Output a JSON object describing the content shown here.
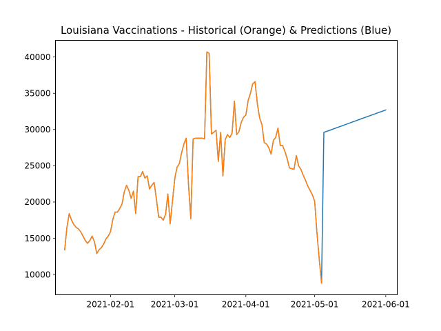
{
  "chart_data": {
    "type": "line",
    "title": "Louisiana Vaccinations - Historical (Orange) & Predictions (Blue)",
    "xlabel": "",
    "ylabel": "",
    "xlim": [
      "2021-01-08",
      "2021-06-06"
    ],
    "ylim": [
      7200,
      42300
    ],
    "grid": false,
    "x_ticks": [
      "2021-02-01",
      "2021-03-01",
      "2021-04-01",
      "2021-05-01",
      "2021-06-01"
    ],
    "y_ticks": [
      10000,
      15000,
      20000,
      25000,
      30000,
      35000,
      40000
    ],
    "colors": {
      "historical": "#ff7f0e",
      "predictions": "#1f77b4"
    },
    "series": [
      {
        "color": "#1f77b4",
        "points": [
          [
            "2021-01-12",
            13400
          ],
          [
            "2021-01-13",
            16500
          ],
          [
            "2021-01-14",
            18400
          ],
          [
            "2021-01-15",
            17500
          ],
          [
            "2021-01-16",
            16900
          ],
          [
            "2021-01-17",
            16500
          ],
          [
            "2021-01-18",
            16300
          ],
          [
            "2021-01-19",
            15900
          ],
          [
            "2021-01-20",
            15300
          ],
          [
            "2021-01-21",
            14700
          ],
          [
            "2021-01-22",
            14300
          ],
          [
            "2021-01-23",
            14700
          ],
          [
            "2021-01-24",
            15300
          ],
          [
            "2021-01-25",
            14500
          ],
          [
            "2021-01-26",
            12900
          ],
          [
            "2021-01-27",
            13400
          ],
          [
            "2021-01-28",
            13700
          ],
          [
            "2021-01-29",
            14200
          ],
          [
            "2021-01-30",
            14900
          ],
          [
            "2021-01-31",
            15300
          ],
          [
            "2021-02-01",
            15900
          ],
          [
            "2021-02-02",
            17600
          ],
          [
            "2021-02-03",
            18600
          ],
          [
            "2021-02-04",
            18600
          ],
          [
            "2021-02-05",
            19100
          ],
          [
            "2021-02-06",
            19700
          ],
          [
            "2021-02-07",
            21400
          ],
          [
            "2021-02-08",
            22300
          ],
          [
            "2021-02-09",
            21600
          ],
          [
            "2021-02-10",
            20500
          ],
          [
            "2021-02-11",
            21500
          ],
          [
            "2021-02-12",
            18400
          ],
          [
            "2021-02-13",
            23500
          ],
          [
            "2021-02-14",
            23500
          ],
          [
            "2021-02-15",
            24200
          ],
          [
            "2021-02-16",
            23300
          ],
          [
            "2021-02-17",
            23600
          ],
          [
            "2021-02-18",
            21800
          ],
          [
            "2021-02-19",
            22300
          ],
          [
            "2021-02-20",
            22700
          ],
          [
            "2021-02-21",
            20400
          ],
          [
            "2021-02-22",
            17900
          ],
          [
            "2021-02-23",
            17900
          ],
          [
            "2021-02-24",
            17500
          ],
          [
            "2021-02-25",
            18300
          ],
          [
            "2021-02-26",
            21100
          ],
          [
            "2021-02-27",
            17000
          ],
          [
            "2021-02-28",
            20100
          ],
          [
            "2021-03-01",
            23200
          ],
          [
            "2021-03-02",
            24800
          ],
          [
            "2021-03-03",
            25300
          ],
          [
            "2021-03-04",
            26800
          ],
          [
            "2021-03-05",
            28000
          ],
          [
            "2021-03-06",
            28800
          ],
          [
            "2021-03-07",
            22400
          ],
          [
            "2021-03-08",
            17700
          ],
          [
            "2021-03-09",
            28700
          ],
          [
            "2021-03-10",
            28800
          ],
          [
            "2021-03-11",
            28800
          ],
          [
            "2021-03-12",
            28800
          ],
          [
            "2021-03-13",
            28800
          ],
          [
            "2021-03-14",
            28700
          ],
          [
            "2021-03-15",
            40700
          ],
          [
            "2021-03-16",
            40500
          ],
          [
            "2021-03-17",
            29400
          ],
          [
            "2021-03-18",
            29600
          ],
          [
            "2021-03-19",
            29900
          ],
          [
            "2021-03-20",
            25600
          ],
          [
            "2021-03-21",
            29600
          ],
          [
            "2021-03-22",
            23600
          ],
          [
            "2021-03-23",
            28600
          ],
          [
            "2021-03-24",
            29300
          ],
          [
            "2021-03-25",
            28900
          ],
          [
            "2021-03-26",
            29500
          ],
          [
            "2021-03-27",
            33900
          ],
          [
            "2021-03-28",
            29300
          ],
          [
            "2021-03-29",
            29700
          ],
          [
            "2021-03-30",
            31000
          ],
          [
            "2021-03-31",
            31700
          ],
          [
            "2021-04-01",
            32000
          ],
          [
            "2021-04-02",
            34000
          ],
          [
            "2021-04-03",
            35000
          ],
          [
            "2021-04-04",
            36300
          ],
          [
            "2021-04-05",
            36600
          ],
          [
            "2021-04-06",
            33600
          ],
          [
            "2021-04-07",
            31600
          ],
          [
            "2021-04-08",
            30700
          ],
          [
            "2021-04-09",
            28200
          ],
          [
            "2021-04-10",
            28000
          ],
          [
            "2021-04-11",
            27500
          ],
          [
            "2021-04-12",
            26600
          ],
          [
            "2021-04-13",
            28500
          ],
          [
            "2021-04-14",
            28900
          ],
          [
            "2021-04-15",
            30200
          ],
          [
            "2021-04-16",
            27800
          ],
          [
            "2021-04-17",
            27800
          ],
          [
            "2021-04-18",
            27000
          ],
          [
            "2021-04-19",
            26000
          ],
          [
            "2021-04-20",
            24700
          ],
          [
            "2021-04-21",
            24600
          ],
          [
            "2021-04-22",
            24500
          ],
          [
            "2021-04-23",
            26400
          ],
          [
            "2021-04-24",
            25000
          ],
          [
            "2021-04-25",
            24500
          ],
          [
            "2021-04-26",
            23700
          ],
          [
            "2021-04-27",
            23000
          ],
          [
            "2021-04-28",
            22200
          ],
          [
            "2021-04-29",
            21600
          ],
          [
            "2021-04-30",
            21000
          ],
          [
            "2021-05-01",
            20100
          ],
          [
            "2021-05-02",
            15700
          ],
          [
            "2021-05-03",
            12100
          ],
          [
            "2021-05-04",
            8800
          ],
          [
            "2021-05-05",
            29600
          ],
          [
            "2021-06-01",
            32700
          ]
        ]
      },
      {
        "color": "#ff7f0e",
        "points": [
          [
            "2021-01-12",
            13400
          ],
          [
            "2021-01-13",
            16500
          ],
          [
            "2021-01-14",
            18400
          ],
          [
            "2021-01-15",
            17500
          ],
          [
            "2021-01-16",
            16900
          ],
          [
            "2021-01-17",
            16500
          ],
          [
            "2021-01-18",
            16300
          ],
          [
            "2021-01-19",
            15900
          ],
          [
            "2021-01-20",
            15300
          ],
          [
            "2021-01-21",
            14700
          ],
          [
            "2021-01-22",
            14300
          ],
          [
            "2021-01-23",
            14700
          ],
          [
            "2021-01-24",
            15300
          ],
          [
            "2021-01-25",
            14500
          ],
          [
            "2021-01-26",
            12900
          ],
          [
            "2021-01-27",
            13400
          ],
          [
            "2021-01-28",
            13700
          ],
          [
            "2021-01-29",
            14200
          ],
          [
            "2021-01-30",
            14900
          ],
          [
            "2021-01-31",
            15300
          ],
          [
            "2021-02-01",
            15900
          ],
          [
            "2021-02-02",
            17600
          ],
          [
            "2021-02-03",
            18600
          ],
          [
            "2021-02-04",
            18600
          ],
          [
            "2021-02-05",
            19100
          ],
          [
            "2021-02-06",
            19700
          ],
          [
            "2021-02-07",
            21400
          ],
          [
            "2021-02-08",
            22300
          ],
          [
            "2021-02-09",
            21600
          ],
          [
            "2021-02-10",
            20500
          ],
          [
            "2021-02-11",
            21500
          ],
          [
            "2021-02-12",
            18400
          ],
          [
            "2021-02-13",
            23500
          ],
          [
            "2021-02-14",
            23500
          ],
          [
            "2021-02-15",
            24200
          ],
          [
            "2021-02-16",
            23300
          ],
          [
            "2021-02-17",
            23600
          ],
          [
            "2021-02-18",
            21800
          ],
          [
            "2021-02-19",
            22300
          ],
          [
            "2021-02-20",
            22700
          ],
          [
            "2021-02-21",
            20400
          ],
          [
            "2021-02-22",
            17900
          ],
          [
            "2021-02-23",
            17900
          ],
          [
            "2021-02-24",
            17500
          ],
          [
            "2021-02-25",
            18300
          ],
          [
            "2021-02-26",
            21100
          ],
          [
            "2021-02-27",
            17000
          ],
          [
            "2021-02-28",
            20100
          ],
          [
            "2021-03-01",
            23200
          ],
          [
            "2021-03-02",
            24800
          ],
          [
            "2021-03-03",
            25300
          ],
          [
            "2021-03-04",
            26800
          ],
          [
            "2021-03-05",
            28000
          ],
          [
            "2021-03-06",
            28800
          ],
          [
            "2021-03-07",
            22400
          ],
          [
            "2021-03-08",
            17700
          ],
          [
            "2021-03-09",
            28700
          ],
          [
            "2021-03-10",
            28800
          ],
          [
            "2021-03-11",
            28800
          ],
          [
            "2021-03-12",
            28800
          ],
          [
            "2021-03-13",
            28800
          ],
          [
            "2021-03-14",
            28700
          ],
          [
            "2021-03-15",
            40700
          ],
          [
            "2021-03-16",
            40500
          ],
          [
            "2021-03-17",
            29400
          ],
          [
            "2021-03-18",
            29600
          ],
          [
            "2021-03-19",
            29900
          ],
          [
            "2021-03-20",
            25600
          ],
          [
            "2021-03-21",
            29600
          ],
          [
            "2021-03-22",
            23600
          ],
          [
            "2021-03-23",
            28600
          ],
          [
            "2021-03-24",
            29300
          ],
          [
            "2021-03-25",
            28900
          ],
          [
            "2021-03-26",
            29500
          ],
          [
            "2021-03-27",
            33900
          ],
          [
            "2021-03-28",
            29300
          ],
          [
            "2021-03-29",
            29700
          ],
          [
            "2021-03-30",
            31000
          ],
          [
            "2021-03-31",
            31700
          ],
          [
            "2021-04-01",
            32000
          ],
          [
            "2021-04-02",
            34000
          ],
          [
            "2021-04-03",
            35000
          ],
          [
            "2021-04-04",
            36300
          ],
          [
            "2021-04-05",
            36600
          ],
          [
            "2021-04-06",
            33600
          ],
          [
            "2021-04-07",
            31600
          ],
          [
            "2021-04-08",
            30700
          ],
          [
            "2021-04-09",
            28200
          ],
          [
            "2021-04-10",
            28000
          ],
          [
            "2021-04-11",
            27500
          ],
          [
            "2021-04-12",
            26600
          ],
          [
            "2021-04-13",
            28500
          ],
          [
            "2021-04-14",
            28900
          ],
          [
            "2021-04-15",
            30200
          ],
          [
            "2021-04-16",
            27800
          ],
          [
            "2021-04-17",
            27800
          ],
          [
            "2021-04-18",
            27000
          ],
          [
            "2021-04-19",
            26000
          ],
          [
            "2021-04-20",
            24700
          ],
          [
            "2021-04-21",
            24600
          ],
          [
            "2021-04-22",
            24500
          ],
          [
            "2021-04-23",
            26400
          ],
          [
            "2021-04-24",
            25000
          ],
          [
            "2021-04-25",
            24500
          ],
          [
            "2021-04-26",
            23700
          ],
          [
            "2021-04-27",
            23000
          ],
          [
            "2021-04-28",
            22200
          ],
          [
            "2021-04-29",
            21600
          ],
          [
            "2021-04-30",
            21000
          ],
          [
            "2021-05-01",
            20100
          ],
          [
            "2021-05-02",
            15700
          ],
          [
            "2021-05-03",
            12100
          ],
          [
            "2021-05-04",
            8800
          ]
        ]
      }
    ]
  }
}
